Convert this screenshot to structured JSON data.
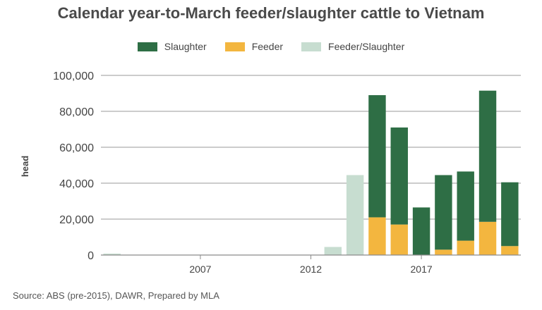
{
  "chart_data": {
    "type": "bar",
    "stacked": true,
    "title": "Calendar year-to-March feeder/slaughter cattle to Vietnam",
    "ylabel": "head",
    "xlabel": "",
    "ylim": [
      0,
      100000
    ],
    "yticks": [
      "0",
      "20,000",
      "40,000",
      "60,000",
      "80,000",
      "100,000"
    ],
    "ytick_values": [
      0,
      20000,
      40000,
      60000,
      80000,
      100000
    ],
    "x_axis": {
      "start_year": 2003,
      "end_year": 2021
    },
    "xtick_years": [
      2007,
      2012,
      2017
    ],
    "xtick_labels": [
      "2007",
      "2012",
      "2017"
    ],
    "grid": true,
    "legend_position": "top-center",
    "colors": {
      "Slaughter": "#2e6e45",
      "Feeder": "#f3b63f",
      "Feeder/Slaughter": "#c7ddd0"
    },
    "categories": [
      "2003",
      "2004",
      "2005",
      "2006",
      "2007",
      "2008",
      "2009",
      "2010",
      "2011",
      "2012",
      "2013",
      "2014",
      "2015",
      "2016",
      "2017",
      "2018",
      "2019",
      "2020",
      "2021"
    ],
    "series": [
      {
        "name": "Feeder/Slaughter",
        "values": [
          800,
          0,
          0,
          0,
          0,
          0,
          0,
          0,
          0,
          0,
          4500,
          44500,
          0,
          0,
          0,
          0,
          0,
          0,
          0
        ]
      },
      {
        "name": "Feeder",
        "values": [
          0,
          0,
          0,
          0,
          0,
          0,
          0,
          0,
          0,
          0,
          0,
          0,
          21000,
          17000,
          0,
          3000,
          8000,
          18500,
          5000
        ]
      },
      {
        "name": "Slaughter",
        "values": [
          0,
          0,
          0,
          0,
          0,
          0,
          0,
          0,
          0,
          0,
          0,
          0,
          68000,
          54000,
          26500,
          41500,
          38500,
          73000,
          35500
        ]
      }
    ],
    "source": "Source: ABS (pre-2015), DAWR, Prepared by MLA"
  },
  "legend": [
    {
      "label": "Slaughter",
      "color": "#2e6e45"
    },
    {
      "label": "Feeder",
      "color": "#f3b63f"
    },
    {
      "label": "Feeder/Slaughter",
      "color": "#c7ddd0"
    }
  ]
}
